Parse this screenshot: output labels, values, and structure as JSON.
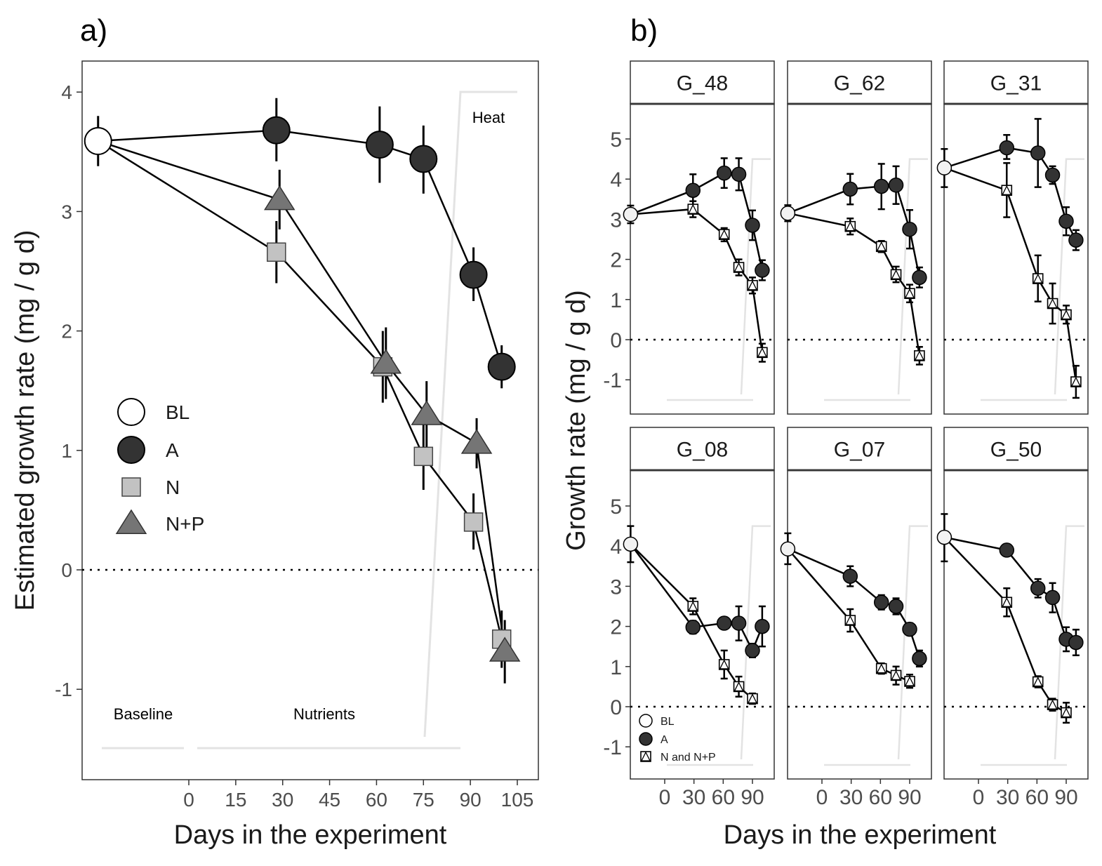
{
  "panel_a": {
    "label": "a)",
    "annotations": {
      "baseline": "Baseline",
      "nutrients": "Nutrients",
      "heat": "Heat"
    }
  },
  "panel_b": {
    "label": "b)"
  },
  "chart_data": [
    {
      "type": "line",
      "panel": "a)",
      "xlabel": "Days in the experiment",
      "ylabel": "Estimated growth rate (mg / g d)",
      "xticks": [
        0,
        15,
        30,
        45,
        60,
        75,
        90,
        105
      ],
      "yticks": [
        -1,
        0,
        1,
        2,
        3,
        4
      ],
      "ylim": [
        -1.7,
        4.25
      ],
      "xlim": [
        -36,
        116
      ],
      "reference_line_y": 0,
      "legend": [
        "BL",
        "A",
        "N",
        "N+P"
      ],
      "series": [
        {
          "name": "BL",
          "points": [
            {
              "x": -29,
              "y": 3.59,
              "lo": 3.38,
              "hi": 3.8
            }
          ]
        },
        {
          "name": "A",
          "points": [
            {
              "x": -29,
              "y": 3.59
            },
            {
              "x": 28,
              "y": 3.68,
              "lo": 3.42,
              "hi": 3.95
            },
            {
              "x": 61,
              "y": 3.56,
              "lo": 3.24,
              "hi": 3.88
            },
            {
              "x": 75,
              "y": 3.44,
              "lo": 3.15,
              "hi": 3.72
            },
            {
              "x": 91,
              "y": 2.47,
              "lo": 2.25,
              "hi": 2.7
            },
            {
              "x": 100,
              "y": 1.7,
              "lo": 1.52,
              "hi": 1.88
            }
          ]
        },
        {
          "name": "N",
          "points": [
            {
              "x": -29,
              "y": 3.59
            },
            {
              "x": 28,
              "y": 2.66,
              "lo": 2.4,
              "hi": 2.92
            },
            {
              "x": 62,
              "y": 1.7,
              "lo": 1.4,
              "hi": 2.0
            },
            {
              "x": 75,
              "y": 0.95,
              "lo": 0.67,
              "hi": 1.22
            },
            {
              "x": 91,
              "y": 0.4,
              "lo": 0.17,
              "hi": 0.64
            },
            {
              "x": 100,
              "y": -0.58,
              "lo": -0.82,
              "hi": -0.34
            }
          ]
        },
        {
          "name": "N+P",
          "points": [
            {
              "x": -29,
              "y": 3.59
            },
            {
              "x": 29,
              "y": 3.1,
              "lo": 2.85,
              "hi": 3.35
            },
            {
              "x": 63,
              "y": 1.73,
              "lo": 1.43,
              "hi": 2.03
            },
            {
              "x": 76,
              "y": 1.3,
              "lo": 1.02,
              "hi": 1.58
            },
            {
              "x": 92,
              "y": 1.06,
              "lo": 0.85,
              "hi": 1.27
            },
            {
              "x": 101,
              "y": -0.68,
              "lo": -0.95,
              "hi": -0.42
            }
          ]
        }
      ]
    },
    {
      "type": "line",
      "panel": "b)",
      "xlabel": "Days in the experiment",
      "ylabel": "Growth rate (mg / g d)",
      "xtick_labels": [
        "0",
        "30",
        "60",
        "90"
      ],
      "xticks": [
        0,
        30,
        60,
        90
      ],
      "yticks": [
        -1,
        0,
        1,
        2,
        3,
        4,
        5
      ],
      "ylim": [
        -1.85,
        5.9
      ],
      "xlim": [
        -48,
        116
      ],
      "reference_line_y": 0,
      "legend": [
        "BL",
        "A",
        "N and N+P"
      ],
      "facets": [
        {
          "name": "G_48",
          "BL": {
            "x": -35,
            "y": 3.12,
            "lo": 2.9,
            "hi": 3.34
          },
          "A": [
            [
              -35,
              3.12
            ],
            [
              29,
              3.72,
              3.32,
              4.12
            ],
            [
              61,
              4.15,
              3.78,
              4.52
            ],
            [
              76,
              4.12,
              3.72,
              4.52
            ],
            [
              90,
              2.85,
              2.48,
              3.22
            ],
            [
              100,
              1.73,
              1.48,
              1.98
            ]
          ],
          "NNP": [
            [
              -35,
              3.12
            ],
            [
              29,
              3.25,
              3.05,
              3.45
            ],
            [
              61,
              2.62,
              2.45,
              2.78
            ],
            [
              76,
              1.8,
              1.6,
              2.0
            ],
            [
              90,
              1.35,
              1.15,
              1.55
            ],
            [
              100,
              -0.32,
              -0.55,
              -0.1
            ]
          ]
        },
        {
          "name": "G_62",
          "BL": {
            "x": -35,
            "y": 3.15,
            "lo": 2.95,
            "hi": 3.35
          },
          "A": [
            [
              -35,
              3.15
            ],
            [
              29,
              3.75,
              3.37,
              4.13
            ],
            [
              61,
              3.82,
              3.25,
              4.38
            ],
            [
              76,
              3.85,
              3.38,
              4.32
            ],
            [
              90,
              2.75,
              2.27,
              3.23
            ],
            [
              100,
              1.55,
              1.3,
              1.8
            ]
          ],
          "NNP": [
            [
              -35,
              3.15
            ],
            [
              29,
              2.82,
              2.62,
              3.02
            ],
            [
              61,
              2.32,
              2.18,
              2.46
            ],
            [
              76,
              1.62,
              1.43,
              1.82
            ],
            [
              90,
              1.15,
              0.93,
              1.37
            ],
            [
              100,
              -0.4,
              -0.62,
              -0.18
            ]
          ]
        },
        {
          "name": "G_31",
          "BL": {
            "x": -35,
            "y": 4.28,
            "lo": 3.8,
            "hi": 4.75
          },
          "A": [
            [
              -35,
              4.28
            ],
            [
              29,
              4.78,
              4.5,
              5.1
            ],
            [
              61,
              4.65,
              3.8,
              5.5
            ],
            [
              76,
              4.1,
              3.88,
              4.32
            ],
            [
              90,
              2.95,
              2.6,
              3.3
            ],
            [
              100,
              2.48,
              2.23,
              2.73
            ]
          ],
          "NNP": [
            [
              -35,
              4.28
            ],
            [
              29,
              3.72,
              3.05,
              4.4
            ],
            [
              61,
              1.52,
              0.95,
              2.1
            ],
            [
              76,
              0.9,
              0.4,
              1.4
            ],
            [
              90,
              0.62,
              0.4,
              0.85
            ],
            [
              100,
              -1.05,
              -1.45,
              -0.65
            ]
          ]
        },
        {
          "name": "G_08",
          "BL": {
            "x": -35,
            "y": 4.05,
            "lo": 3.6,
            "hi": 4.5
          },
          "A": [
            [
              -35,
              4.05
            ],
            [
              29,
              1.98,
              1.82,
              2.14
            ],
            [
              61,
              2.08,
              1.95,
              2.2
            ],
            [
              76,
              2.08,
              1.65,
              2.5
            ],
            [
              90,
              1.4,
              1.23,
              1.57
            ],
            [
              100,
              2.0,
              1.5,
              2.5
            ]
          ],
          "NNP": [
            [
              -35,
              4.05
            ],
            [
              29,
              2.5,
              2.3,
              2.7
            ],
            [
              61,
              1.05,
              0.7,
              1.4
            ],
            [
              76,
              0.5,
              0.25,
              0.75
            ],
            [
              90,
              0.2,
              0.07,
              0.33
            ]
          ]
        },
        {
          "name": "G_07",
          "BL": {
            "x": -35,
            "y": 3.93,
            "lo": 3.55,
            "hi": 4.32
          },
          "A": [
            [
              -35,
              3.93
            ],
            [
              29,
              3.25,
              3.0,
              3.5
            ],
            [
              61,
              2.6,
              2.42,
              2.78
            ],
            [
              76,
              2.5,
              2.3,
              2.7
            ],
            [
              90,
              1.93,
              1.78,
              2.08
            ],
            [
              100,
              1.2,
              1.0,
              1.4
            ]
          ],
          "NNP": [
            [
              -35,
              3.93
            ],
            [
              29,
              2.15,
              1.87,
              2.43
            ],
            [
              61,
              0.95,
              0.82,
              1.08
            ],
            [
              76,
              0.78,
              0.55,
              1.0
            ],
            [
              90,
              0.63,
              0.47,
              0.8
            ]
          ]
        },
        {
          "name": "G_50",
          "BL": {
            "x": -35,
            "y": 4.22,
            "lo": 3.62,
            "hi": 4.8
          },
          "A": [
            [
              -35,
              4.22
            ],
            [
              29,
              3.9,
              3.82,
              3.98
            ],
            [
              61,
              2.95,
              2.72,
              3.18
            ],
            [
              76,
              2.72,
              2.35,
              3.08
            ],
            [
              90,
              1.68,
              1.38,
              1.98
            ],
            [
              100,
              1.6,
              1.28,
              1.92
            ]
          ],
          "NNP": [
            [
              -35,
              4.22
            ],
            [
              29,
              2.6,
              2.25,
              2.95
            ],
            [
              61,
              0.62,
              0.48,
              0.76
            ],
            [
              76,
              0.05,
              -0.1,
              0.2
            ],
            [
              90,
              -0.15,
              -0.4,
              0.1
            ]
          ]
        }
      ]
    }
  ]
}
